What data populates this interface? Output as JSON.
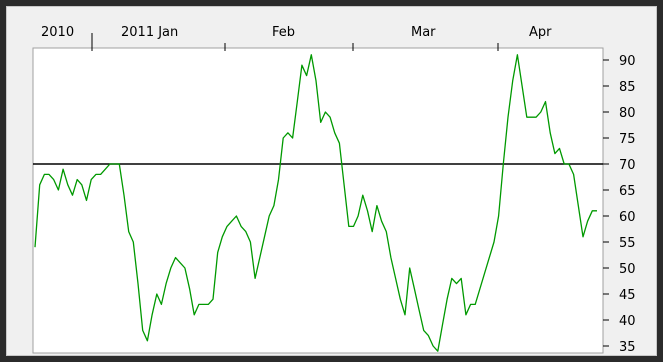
{
  "colors": {
    "background": "#f0f0f0",
    "plot_area": "#ffffff",
    "series": "#009900",
    "reference_line": "#000000",
    "frame": "#a0a0a0"
  },
  "chart_data": {
    "type": "line",
    "title": "",
    "xlabel": "",
    "ylabel": "",
    "x_tick_labels": [
      "2010",
      "2011 Jan",
      "Feb",
      "Mar",
      "Apr"
    ],
    "y_tick_labels": [
      "90",
      "85",
      "80",
      "75",
      "70",
      "65",
      "60",
      "55",
      "50",
      "45",
      "40",
      "35"
    ],
    "ylim": [
      32,
      92
    ],
    "yaxis_position": "right",
    "grid": false,
    "legend": "none",
    "reference_line": {
      "value": 70
    },
    "series": [
      {
        "values": [
          54,
          66,
          68,
          68,
          67,
          65,
          69,
          66,
          64,
          67,
          66,
          63,
          67,
          68,
          68,
          69,
          70,
          70,
          70,
          64,
          57,
          55,
          47,
          38,
          36,
          41,
          45,
          43,
          47,
          50,
          52,
          51,
          50,
          46,
          41,
          43,
          43,
          43,
          44,
          53,
          56,
          58,
          59,
          60,
          58,
          57,
          55,
          48,
          52,
          56,
          60,
          62,
          67,
          75,
          76,
          75,
          82,
          89,
          87,
          91,
          86,
          78,
          80,
          79,
          76,
          74,
          66,
          58,
          58,
          60,
          64,
          61,
          57,
          62,
          59,
          57,
          52,
          48,
          44,
          41,
          50,
          46,
          42,
          38,
          37,
          35,
          34,
          39,
          44,
          48,
          47,
          48,
          41,
          43,
          43,
          46,
          49,
          52,
          55,
          60,
          70,
          79,
          86,
          91,
          85,
          79,
          79,
          79,
          80,
          82,
          76,
          72,
          73,
          70,
          70,
          68,
          62,
          56,
          59,
          61,
          61
        ]
      }
    ]
  }
}
